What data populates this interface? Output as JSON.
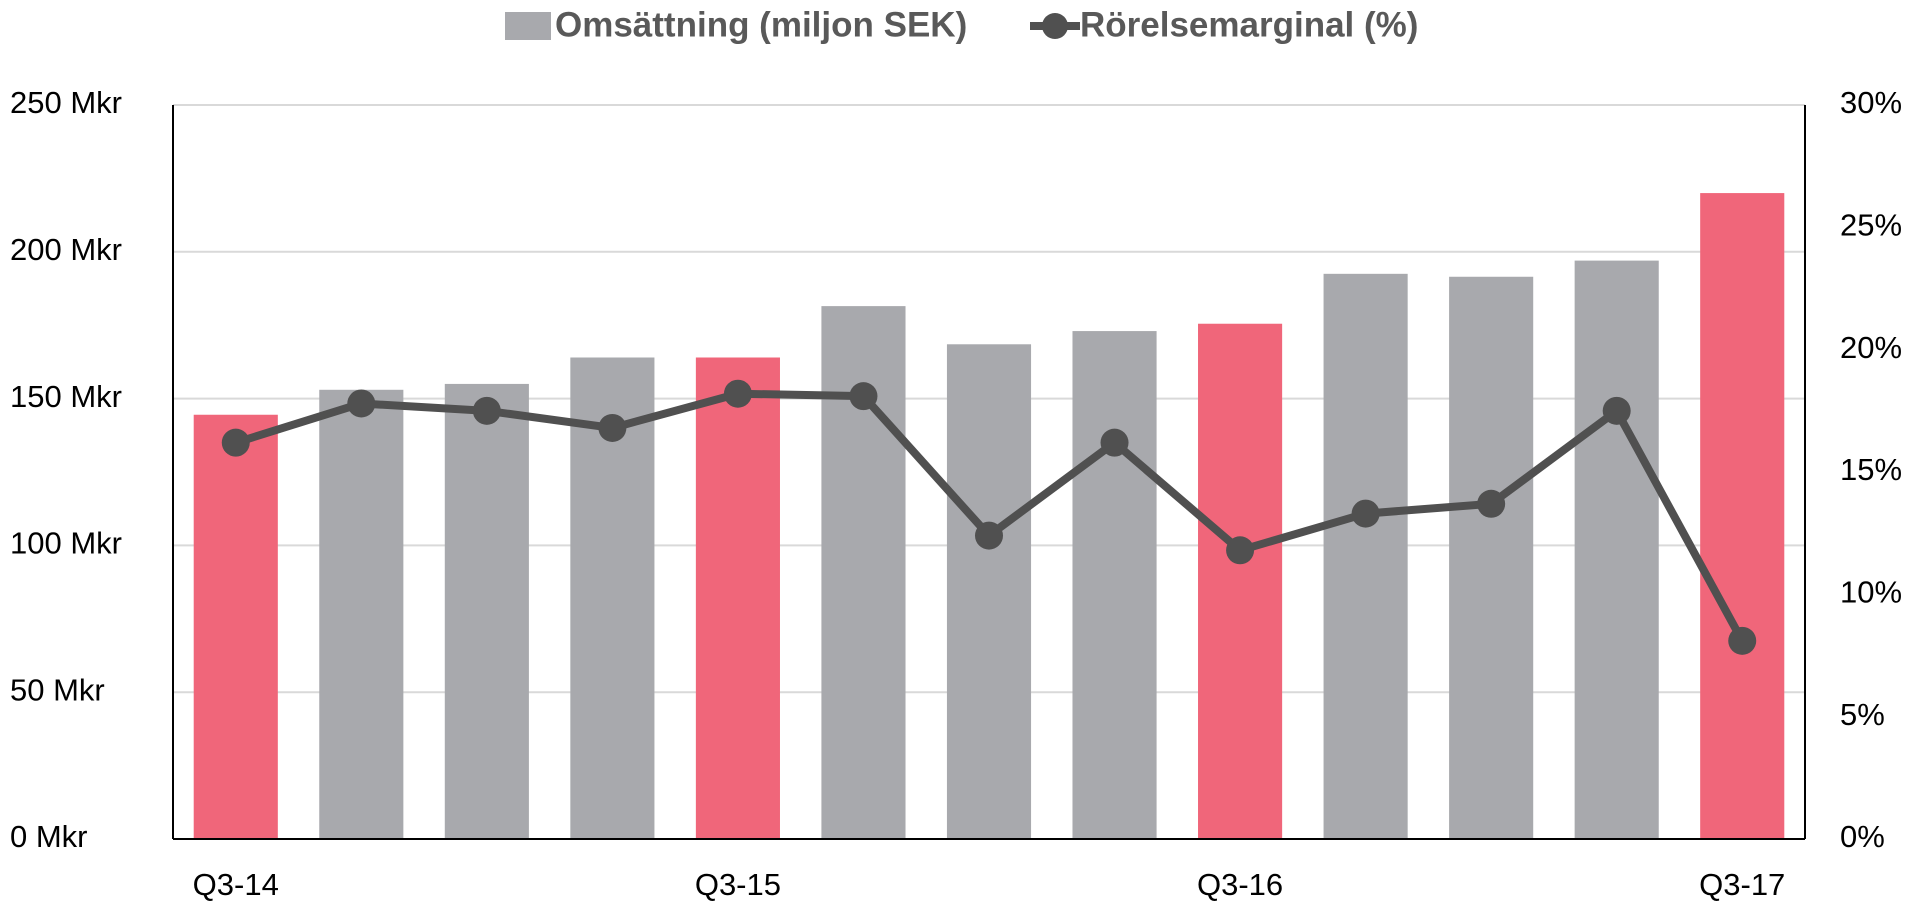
{
  "chart_data": {
    "type": "bar+line",
    "categories": [
      "Q3-14",
      null,
      null,
      null,
      "Q3-15",
      null,
      null,
      null,
      "Q3-16",
      null,
      null,
      null,
      "Q3-17"
    ],
    "series": [
      {
        "name": "Omsättning (miljon SEK)",
        "type": "bar",
        "color": "#a8a9ad",
        "colors": [
          "#f0667a",
          "#a8a9ad",
          "#a8a9ad",
          "#a8a9ad",
          "#f0667a",
          "#a8a9ad",
          "#a8a9ad",
          "#a8a9ad",
          "#f0667a",
          "#a8a9ad",
          "#a8a9ad",
          "#a8a9ad",
          "#f0667a"
        ],
        "values": [
          144.5,
          153,
          155,
          164,
          164,
          181.5,
          168.5,
          173,
          175.5,
          192.5,
          191.5,
          197,
          220
        ]
      },
      {
        "name": "Rörelsemarginal (%)",
        "type": "line",
        "axis": "y2",
        "color": "#505050",
        "values": [
          16.2,
          17.8,
          17.5,
          16.8,
          18.2,
          18.1,
          12.4,
          16.2,
          11.8,
          13.3,
          13.7,
          17.5,
          8.1
        ]
      }
    ],
    "ylim": [
      0,
      250
    ],
    "yticks": [
      {
        "value": 0,
        "label": "0 Mkr"
      },
      {
        "value": 50,
        "label": "50 Mkr"
      },
      {
        "value": 100,
        "label": "100 Mkr"
      },
      {
        "value": 150,
        "label": "150 Mkr"
      },
      {
        "value": 200,
        "label": "200 Mkr"
      },
      {
        "value": 250,
        "label": "250 Mkr"
      }
    ],
    "y2lim": [
      0,
      30
    ],
    "y2ticks": [
      {
        "value": 0,
        "label": "0%"
      },
      {
        "value": 5,
        "label": "5%"
      },
      {
        "value": 10,
        "label": "10%"
      },
      {
        "value": 15,
        "label": "15%"
      },
      {
        "value": 20,
        "label": "20%"
      },
      {
        "value": 25,
        "label": "25%"
      },
      {
        "value": 30,
        "label": "30%"
      }
    ],
    "grid": true,
    "legend": "top"
  }
}
